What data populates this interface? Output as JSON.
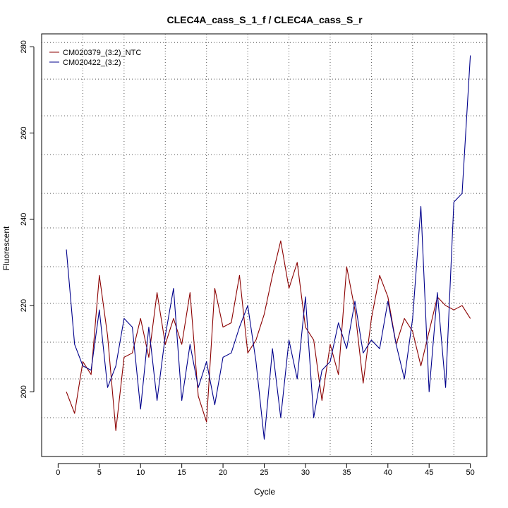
{
  "chart_data": {
    "type": "line",
    "title": "CLEC4A_cass_S_1_f / CLEC4A_cass_S_r",
    "xlabel": "Cycle",
    "ylabel": "Fluorescent",
    "xlim": [
      -2,
      52
    ],
    "ylim": [
      185,
      283
    ],
    "x_ticks": [
      0,
      5,
      10,
      15,
      20,
      25,
      30,
      35,
      40,
      45,
      50
    ],
    "y_ticks": [
      200,
      220,
      240,
      260,
      280
    ],
    "grid": true,
    "grid_style": "dotted",
    "v_grid": [
      3,
      8,
      13,
      18,
      23,
      28,
      33,
      38,
      43,
      48
    ],
    "h_grid": [
      194,
      203,
      211.5,
      220.5,
      229,
      238,
      246,
      255,
      264,
      272.5,
      281
    ],
    "legend_position": "top-left",
    "x": [
      1,
      2,
      3,
      4,
      5,
      6,
      7,
      8,
      9,
      10,
      11,
      12,
      13,
      14,
      15,
      16,
      17,
      18,
      19,
      20,
      21,
      22,
      23,
      24,
      25,
      26,
      27,
      28,
      29,
      30,
      31,
      32,
      33,
      34,
      35,
      36,
      37,
      38,
      39,
      40,
      41,
      42,
      43,
      44,
      45,
      46,
      47,
      48,
      49,
      50
    ],
    "series": [
      {
        "name": "CM020379_(3:2)_NTC",
        "color": "#8b0000",
        "values": [
          200,
          195,
          207,
          204,
          227,
          213,
          191,
          208,
          209,
          217,
          208,
          223,
          211,
          217,
          211,
          223,
          199,
          193,
          224,
          215,
          216,
          227,
          209,
          212,
          218,
          227,
          235,
          224,
          230,
          215,
          212,
          198,
          211,
          204,
          229,
          219,
          202,
          217,
          227,
          222,
          211,
          217,
          214,
          206,
          214,
          222,
          220,
          219,
          220,
          217
        ]
      },
      {
        "name": "CM020422_(3:2)",
        "color": "#00008b",
        "values": [
          233,
          211,
          206,
          205,
          219,
          201,
          206,
          217,
          215,
          196,
          215,
          198,
          213,
          224,
          198,
          211,
          201,
          207,
          197,
          208,
          209,
          215,
          220,
          207,
          189,
          210,
          194,
          212,
          203,
          222,
          194,
          205,
          207,
          216,
          210,
          221,
          209,
          212,
          210,
          221,
          211,
          203,
          217,
          243,
          200,
          223,
          201,
          244,
          246,
          278
        ]
      }
    ]
  }
}
